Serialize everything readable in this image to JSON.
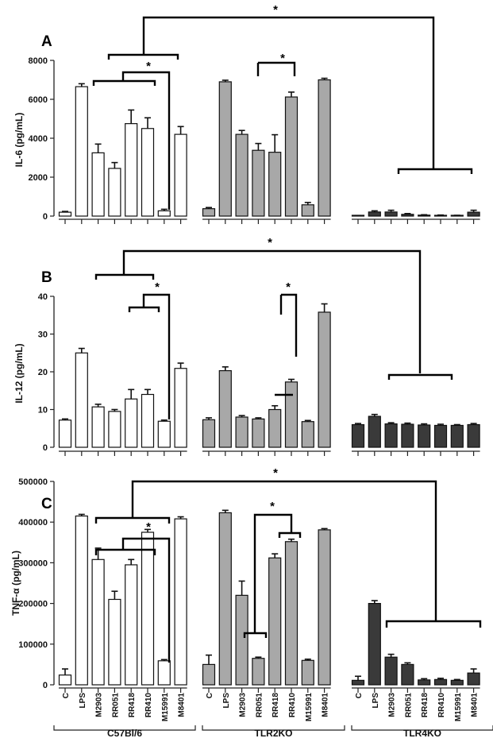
{
  "chart_data": [
    {
      "type": "bar",
      "panel_label": "A",
      "ylabel": "IL-6  (pg/mL)",
      "ylim": [
        0,
        8000
      ],
      "yticks": [
        "0",
        "2000",
        "4000",
        "6000",
        "8000"
      ],
      "categories": [
        "C",
        "LPS",
        "M2903",
        "RR051",
        "RR418",
        "RR410",
        "M15991",
        "M8401"
      ],
      "groups": [
        "C57Bl/6",
        "TLR2KO",
        "TLR4KO"
      ],
      "colors": [
        "#ffffff",
        "#a8a8a8",
        "#3a3a3a"
      ],
      "series": [
        {
          "name": "C57Bl/6",
          "values": [
            200,
            6650,
            3250,
            2450,
            4750,
            4500,
            270,
            4200
          ],
          "errors": [
            40,
            150,
            450,
            300,
            700,
            550,
            80,
            400
          ]
        },
        {
          "name": "TLR2KO",
          "values": [
            380,
            6900,
            4200,
            3380,
            3280,
            6120,
            580,
            7000
          ],
          "errors": [
            60,
            80,
            200,
            350,
            900,
            250,
            120,
            80
          ]
        },
        {
          "name": "TLR4KO",
          "values": [
            20,
            210,
            210,
            90,
            50,
            40,
            30,
            200
          ],
          "errors": [
            10,
            60,
            90,
            40,
            20,
            15,
            10,
            100
          ]
        }
      ],
      "significance": [
        "*",
        "*",
        "*"
      ]
    },
    {
      "type": "bar",
      "panel_label": "B",
      "ylabel": "IL-12  (pg/mL)",
      "ylim": [
        0,
        40
      ],
      "yticks": [
        "0",
        "10",
        "20",
        "30",
        "40"
      ],
      "categories": [
        "C",
        "LPS",
        "M2903",
        "RR051",
        "RR418",
        "RR410",
        "M15991",
        "M8401"
      ],
      "groups": [
        "C57Bl/6",
        "TLR2KO",
        "TLR4KO"
      ],
      "colors": [
        "#ffffff",
        "#a8a8a8",
        "#3a3a3a"
      ],
      "series": [
        {
          "name": "C57Bl/6",
          "values": [
            7.2,
            25.0,
            10.7,
            9.5,
            12.8,
            14.0,
            6.9,
            20.9
          ],
          "errors": [
            0.3,
            1.2,
            0.7,
            0.5,
            2.5,
            1.3,
            0.3,
            1.4
          ]
        },
        {
          "name": "TLR2KO",
          "values": [
            7.3,
            20.3,
            8.0,
            7.5,
            10.0,
            17.3,
            6.8,
            35.8
          ],
          "errors": [
            0.5,
            1.0,
            0.4,
            0.3,
            1.0,
            0.7,
            0.3,
            2.2
          ]
        },
        {
          "name": "TLR4KO",
          "values": [
            6.0,
            8.2,
            6.2,
            6.1,
            5.9,
            5.8,
            5.8,
            6.0
          ],
          "errors": [
            0.3,
            0.5,
            0.3,
            0.3,
            0.3,
            0.3,
            0.2,
            0.3
          ]
        }
      ],
      "significance": [
        "*",
        "*",
        "*"
      ]
    },
    {
      "type": "bar",
      "panel_label": "C",
      "ylabel": "TNF-α  (pg/mL)",
      "ylim": [
        0,
        500000
      ],
      "yticks": [
        "0",
        "100000",
        "200000",
        "300000",
        "400000",
        "500000"
      ],
      "categories": [
        "C",
        "LPS",
        "M2903",
        "RR051",
        "RR418",
        "RR410",
        "M15991",
        "M8401"
      ],
      "groups": [
        "C57Bl/6",
        "TLR2KO",
        "TLR4KO"
      ],
      "colors": [
        "#ffffff",
        "#a8a8a8",
        "#3a3a3a"
      ],
      "series": [
        {
          "name": "C57Bl/6",
          "values": [
            24000,
            415000,
            308000,
            210000,
            295000,
            375000,
            59000,
            408000
          ],
          "errors": [
            15000,
            4000,
            28000,
            20000,
            13000,
            7000,
            3000,
            5000
          ]
        },
        {
          "name": "TLR2KO",
          "values": [
            50000,
            423000,
            220000,
            65000,
            312000,
            352000,
            60000,
            381000
          ],
          "errors": [
            23000,
            6000,
            35000,
            3000,
            10000,
            6000,
            3000,
            3000
          ]
        },
        {
          "name": "TLR4KO",
          "values": [
            11000,
            200000,
            68000,
            50000,
            12000,
            13000,
            11000,
            29000
          ],
          "errors": [
            10000,
            7000,
            7000,
            4000,
            3000,
            3000,
            2000,
            10000
          ]
        }
      ],
      "significance": [
        "*",
        "*",
        "*"
      ]
    }
  ]
}
